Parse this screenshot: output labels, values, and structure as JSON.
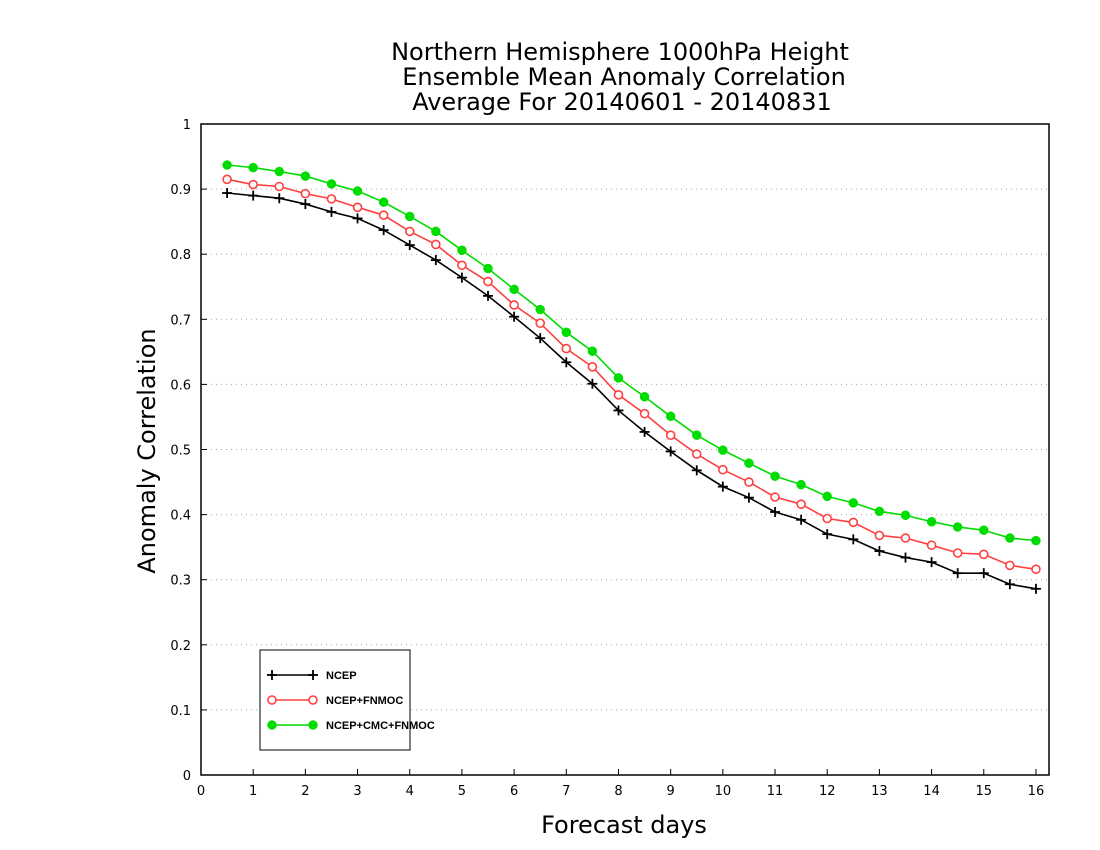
{
  "chart_data": {
    "type": "line",
    "title": [
      "Northern Hemisphere 1000hPa Height",
      "Ensemble Mean Anomaly Correlation",
      "Average For 20140601 - 20140831"
    ],
    "xlabel": "Forecast days",
    "ylabel": "Anomaly Correlation",
    "xlim": [
      0,
      16.25
    ],
    "ylim": [
      0,
      1
    ],
    "xticks": [
      0,
      1,
      2,
      3,
      4,
      5,
      6,
      7,
      8,
      9,
      10,
      11,
      12,
      13,
      14,
      15,
      16
    ],
    "xtick_labels": [
      "0",
      "1",
      "2",
      "3",
      "4",
      "5",
      "6",
      "7",
      "8",
      "9",
      "10",
      "11",
      "12",
      "13",
      "14",
      "15",
      "16"
    ],
    "yticks": [
      0,
      0.1,
      0.2,
      0.3,
      0.4,
      0.5,
      0.6,
      0.7,
      0.8,
      0.9,
      1
    ],
    "ytick_labels": [
      "0",
      "0.1",
      "0.2",
      "0.3",
      "0.4",
      "0.5",
      "0.6",
      "0.7",
      "0.8",
      "0.9",
      "1"
    ],
    "grid": true,
    "legend_position": "bottom-left",
    "x": [
      0.5,
      1,
      1.5,
      2,
      2.5,
      3,
      3.5,
      4,
      4.5,
      5,
      5.5,
      6,
      6.5,
      7,
      7.5,
      8,
      8.5,
      9,
      9.5,
      10,
      10.5,
      11,
      11.5,
      12,
      12.5,
      13,
      13.5,
      14,
      14.5,
      15,
      15.5,
      16
    ],
    "series": [
      {
        "name": "NCEP",
        "color": "#000000",
        "marker": "plus",
        "values": [
          0.894,
          0.89,
          0.886,
          0.877,
          0.865,
          0.855,
          0.837,
          0.814,
          0.791,
          0.764,
          0.736,
          0.704,
          0.671,
          0.634,
          0.601,
          0.56,
          0.527,
          0.497,
          0.468,
          0.443,
          0.426,
          0.404,
          0.392,
          0.37,
          0.362,
          0.344,
          0.334,
          0.327,
          0.31,
          0.31,
          0.293,
          0.286
        ]
      },
      {
        "name": "NCEP+FNMOC",
        "color": "#ff4040",
        "marker": "open-circle",
        "values": [
          0.915,
          0.907,
          0.904,
          0.893,
          0.885,
          0.872,
          0.86,
          0.835,
          0.815,
          0.783,
          0.758,
          0.722,
          0.694,
          0.655,
          0.627,
          0.584,
          0.555,
          0.522,
          0.493,
          0.469,
          0.45,
          0.427,
          0.416,
          0.394,
          0.388,
          0.368,
          0.364,
          0.353,
          0.341,
          0.339,
          0.322,
          0.316
        ]
      },
      {
        "name": "NCEP+CMC+FNMOC",
        "color": "#00dc00",
        "marker": "filled-circle",
        "values": [
          0.937,
          0.933,
          0.927,
          0.92,
          0.908,
          0.897,
          0.88,
          0.858,
          0.835,
          0.806,
          0.778,
          0.746,
          0.715,
          0.68,
          0.651,
          0.61,
          0.581,
          0.551,
          0.522,
          0.499,
          0.479,
          0.459,
          0.446,
          0.428,
          0.418,
          0.405,
          0.399,
          0.389,
          0.381,
          0.376,
          0.364,
          0.36
        ]
      }
    ]
  }
}
